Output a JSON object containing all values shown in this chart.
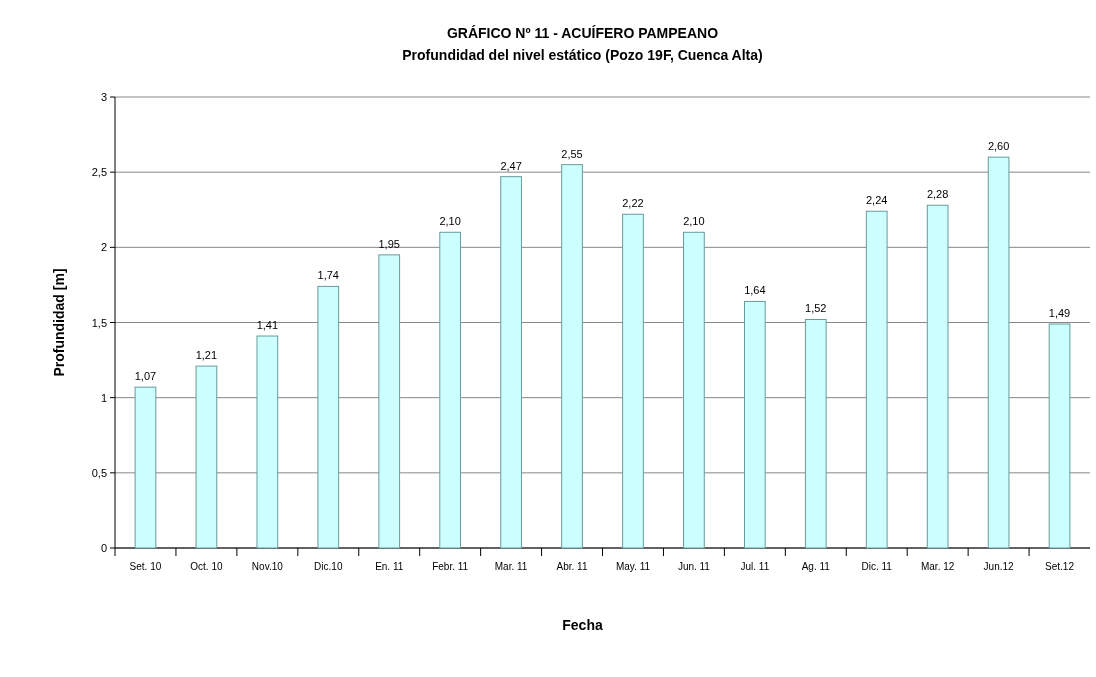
{
  "chart_data": {
    "type": "bar",
    "title": "GRÁFICO Nº 11 - ACUÍFERO PAMPEANO",
    "subtitle": "Profundidad del nivel estático (Pozo 19F, Cuenca Alta)",
    "xlabel": "Fecha",
    "ylabel": "Profundidad [m]",
    "categories": [
      "Set. 10",
      "Oct. 10",
      "Nov.10",
      "Dic.10",
      "En. 11",
      "Febr. 11",
      "Mar. 11",
      "Abr. 11",
      "May. 11",
      "Jun. 11",
      "Jul. 11",
      "Ag. 11",
      "Dic. 11",
      "Mar. 12",
      "Jun.12",
      "Set.12"
    ],
    "values": [
      1.07,
      1.21,
      1.41,
      1.74,
      1.95,
      2.1,
      2.47,
      2.55,
      2.22,
      2.1,
      1.64,
      1.52,
      2.24,
      2.28,
      2.6,
      1.49
    ],
    "value_labels": [
      "1,07",
      "1,21",
      "1,41",
      "1,74",
      "1,95",
      "2,10",
      "2,47",
      "2,55",
      "2,22",
      "2,10",
      "1,64",
      "1,52",
      "2,24",
      "2,28",
      "2,60",
      "1,49"
    ],
    "color": "#ccffff",
    "ylim": [
      0,
      3
    ],
    "yticks": [
      0,
      {
        "value": 0.5,
        "label": "0,5"
      },
      1,
      {
        "value": 1.5,
        "label": "1,5"
      },
      2,
      {
        "value": 2.5,
        "label": "2,5"
      },
      3
    ],
    "grid": "y"
  }
}
